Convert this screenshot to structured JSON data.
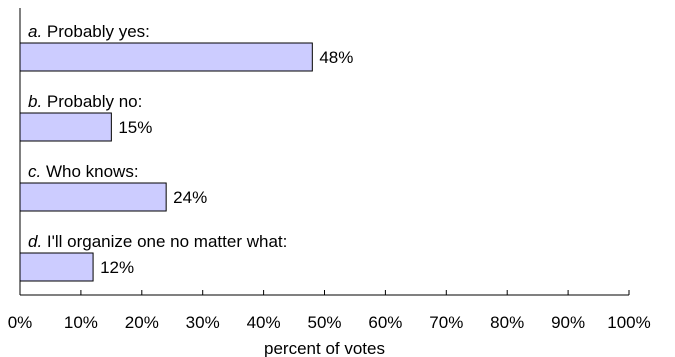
{
  "chart_data": {
    "type": "bar",
    "orientation": "horizontal",
    "categories": [
      {
        "prefix": "a.",
        "label": "Probably yes:"
      },
      {
        "prefix": "b.",
        "label": "Probably no:"
      },
      {
        "prefix": "c.",
        "label": "Who knows:"
      },
      {
        "prefix": "d.",
        "label": "I'll organize one no matter what:"
      }
    ],
    "values": [
      48,
      15,
      24,
      12
    ],
    "value_labels": [
      "48%",
      "15%",
      "24%",
      "12%"
    ],
    "xlabel": "percent of votes",
    "xlim": [
      0,
      100
    ],
    "x_ticks": [
      "0%",
      "10%",
      "20%",
      "30%",
      "40%",
      "50%",
      "60%",
      "70%",
      "80%",
      "90%",
      "100%"
    ],
    "grid": false,
    "legend": "none",
    "colors": {
      "bar_fill": "#ccccff",
      "bar_stroke": "#000000",
      "axis": "#000000"
    }
  }
}
